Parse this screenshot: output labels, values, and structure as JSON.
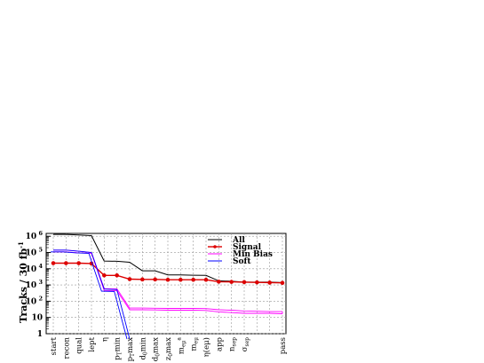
{
  "chart_data": {
    "type": "line",
    "ylabel": "Tracks / 30 fb",
    "ylabel_sup": "-1",
    "yscale": "log",
    "ylim": [
      1,
      1500000
    ],
    "grid": true,
    "legend_position": "top-right",
    "yticks": [
      {
        "value": 1,
        "mant": "1",
        "exp": ""
      },
      {
        "value": 10,
        "mant": "10",
        "exp": ""
      },
      {
        "value": 100,
        "mant": "10",
        "exp": "2"
      },
      {
        "value": 1000,
        "mant": "10",
        "exp": "3"
      },
      {
        "value": 10000,
        "mant": "10",
        "exp": "4"
      },
      {
        "value": 100000,
        "mant": "10",
        "exp": "5"
      },
      {
        "value": 1000000,
        "mant": "10",
        "exp": "6"
      }
    ],
    "categories": [
      {
        "base": "start",
        "sub": "",
        "sup": ""
      },
      {
        "base": "recon",
        "sub": "",
        "sup": ""
      },
      {
        "base": "qual",
        "sub": "",
        "sup": ""
      },
      {
        "base": "lept",
        "sub": "",
        "sup": ""
      },
      {
        "base": "η",
        "sub": "",
        "sup": ""
      },
      {
        "base": "p",
        "sub": "T",
        "sup": "",
        "suffix": "min"
      },
      {
        "base": "p",
        "sub": "T",
        "sup": "",
        "suffix": "max"
      },
      {
        "base": "d",
        "sub": "0",
        "sup": "",
        "suffix": "min"
      },
      {
        "base": "d",
        "sub": "0",
        "sup": "",
        "suffix": "max"
      },
      {
        "base": "z",
        "sub": "0",
        "sup": "",
        "suffix": "max"
      },
      {
        "base": "m",
        "sub": "eμ",
        "sup": "a"
      },
      {
        "base": "m",
        "sub": "eμ",
        "sup": ""
      },
      {
        "base": "η(",
        "sub": "",
        "sup": "",
        "suffix": "eμ)"
      },
      {
        "base": "app",
        "sub": "",
        "sup": ""
      },
      {
        "base": "n",
        "sub": "sep",
        "sup": ""
      },
      {
        "base": "σ",
        "sub": "sep",
        "sup": ""
      },
      {
        "base": "",
        "sub": "",
        "sup": ""
      },
      {
        "base": "",
        "sub": "",
        "sup": ""
      },
      {
        "base": "pass",
        "sub": "",
        "sup": ""
      }
    ],
    "series": [
      {
        "name": "All",
        "color": "#000000",
        "style": "line",
        "values": [
          1300000,
          1300000,
          1200000,
          1100000,
          30000,
          29000,
          25000,
          7500,
          7500,
          4200,
          4200,
          4000,
          3900,
          1800,
          1700,
          1500,
          1500,
          1500,
          1400
        ]
      },
      {
        "name": "Signal",
        "color": "#dd0000",
        "style": "line-markers",
        "values": [
          22000,
          22000,
          22000,
          21000,
          3900,
          3900,
          2300,
          2200,
          2200,
          2100,
          2100,
          2100,
          2100,
          1600,
          1550,
          1500,
          1450,
          1400,
          1350
        ]
      },
      {
        "name": "Min Bias",
        "color": "#ff00ff",
        "style": "band",
        "upper": [
          140000,
          140000,
          120000,
          100000,
          600,
          580,
          38,
          38,
          37,
          36,
          36,
          36,
          35,
          30,
          28,
          25,
          24,
          23,
          23
        ],
        "lower": [
          110000,
          110000,
          95000,
          90000,
          460,
          440,
          30,
          30,
          29,
          28,
          28,
          28,
          27,
          22,
          20,
          18,
          18,
          18,
          17
        ]
      },
      {
        "name": "Soft",
        "color": "#0000ff",
        "style": "band-cutoff",
        "upper": [
          140000,
          140000,
          120000,
          100000,
          560,
          520,
          1
        ],
        "lower": [
          110000,
          110000,
          95000,
          90000,
          420,
          400,
          1
        ]
      }
    ]
  }
}
